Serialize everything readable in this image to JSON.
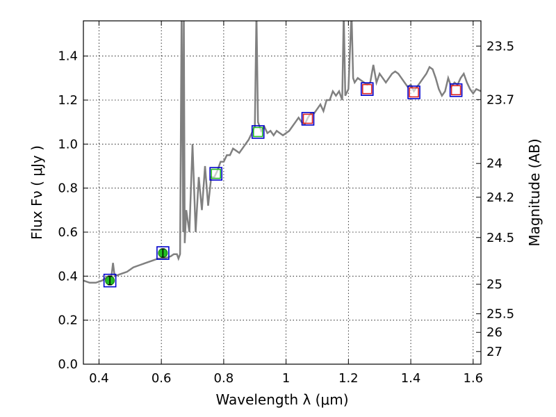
{
  "chart_data": {
    "type": "line",
    "xlabel": "Wavelength  λ (μm)",
    "ylabel": "Flux  Fν  ( μJy )",
    "y2label": "Magnitude (AB)",
    "xlim": [
      0.35,
      1.625
    ],
    "ylim": [
      0.0,
      1.56
    ],
    "grid": true,
    "x_ticks": [
      0.4,
      0.6,
      0.8,
      1.0,
      1.2,
      1.4,
      1.6
    ],
    "x_tick_labels": [
      "0.4",
      "0.6",
      "0.8",
      "1",
      "1.2",
      "1.4",
      "1.6"
    ],
    "y_ticks": [
      0.0,
      0.2,
      0.4,
      0.6,
      0.8,
      1.0,
      1.2,
      1.4
    ],
    "y_tick_labels": [
      "0.0",
      "0.2",
      "0.4",
      "0.6",
      "0.8",
      "1.0",
      "1.2",
      "1.4"
    ],
    "mag_ticks": [
      "23.5",
      "23.7",
      "24",
      "24.2",
      "24.5",
      "25",
      "25.5",
      "26",
      "27"
    ],
    "colors": {
      "spectrum": "#808080",
      "model_box": "#0000cc",
      "green_point": "#22bb22",
      "red_box": "#dd2222"
    },
    "series": [
      {
        "kind": "spectrum",
        "x": [
          0.35,
          0.37,
          0.39,
          0.41,
          0.43,
          0.44,
          0.445,
          0.45,
          0.47,
          0.49,
          0.51,
          0.53,
          0.55,
          0.57,
          0.59,
          0.61,
          0.63,
          0.64,
          0.65,
          0.655,
          0.66,
          0.665,
          0.67,
          0.672,
          0.675,
          0.68,
          0.69,
          0.7,
          0.71,
          0.72,
          0.73,
          0.74,
          0.75,
          0.76,
          0.77,
          0.78,
          0.79,
          0.8,
          0.81,
          0.82,
          0.83,
          0.84,
          0.85,
          0.86,
          0.87,
          0.88,
          0.89,
          0.9,
          0.905,
          0.91,
          0.92,
          0.93,
          0.94,
          0.95,
          0.96,
          0.97,
          0.98,
          0.99,
          1.0,
          1.01,
          1.02,
          1.03,
          1.04,
          1.05,
          1.06,
          1.07,
          1.08,
          1.09,
          1.1,
          1.11,
          1.12,
          1.13,
          1.14,
          1.15,
          1.16,
          1.17,
          1.18,
          1.185,
          1.19,
          1.2,
          1.21,
          1.215,
          1.22,
          1.23,
          1.24,
          1.25,
          1.26,
          1.27,
          1.28,
          1.29,
          1.3,
          1.31,
          1.32,
          1.33,
          1.34,
          1.35,
          1.36,
          1.37,
          1.38,
          1.39,
          1.4,
          1.41,
          1.42,
          1.43,
          1.44,
          1.45,
          1.46,
          1.47,
          1.48,
          1.49,
          1.5,
          1.51,
          1.52,
          1.53,
          1.54,
          1.55,
          1.56,
          1.57,
          1.58,
          1.59,
          1.6,
          1.61,
          1.625
        ],
        "y": [
          0.38,
          0.37,
          0.37,
          0.38,
          0.4,
          0.4,
          0.46,
          0.4,
          0.41,
          0.42,
          0.44,
          0.45,
          0.46,
          0.47,
          0.48,
          0.48,
          0.49,
          0.5,
          0.5,
          0.48,
          0.5,
          1.6,
          0.6,
          1.6,
          0.55,
          0.7,
          0.6,
          1.0,
          0.6,
          0.85,
          0.7,
          0.9,
          0.72,
          0.85,
          0.85,
          0.88,
          0.92,
          0.92,
          0.95,
          0.95,
          0.98,
          0.97,
          0.96,
          0.98,
          1.0,
          1.02,
          1.05,
          1.08,
          1.6,
          1.1,
          1.06,
          1.08,
          1.05,
          1.06,
          1.04,
          1.06,
          1.05,
          1.04,
          1.05,
          1.06,
          1.08,
          1.1,
          1.12,
          1.1,
          1.09,
          1.12,
          1.14,
          1.14,
          1.16,
          1.18,
          1.15,
          1.2,
          1.2,
          1.24,
          1.22,
          1.24,
          1.2,
          1.6,
          1.22,
          1.25,
          1.6,
          1.3,
          1.28,
          1.3,
          1.29,
          1.28,
          1.27,
          1.28,
          1.36,
          1.28,
          1.32,
          1.3,
          1.28,
          1.3,
          1.32,
          1.33,
          1.32,
          1.3,
          1.28,
          1.26,
          1.27,
          1.24,
          1.26,
          1.28,
          1.3,
          1.32,
          1.35,
          1.34,
          1.3,
          1.25,
          1.22,
          1.24,
          1.3,
          1.26,
          1.28,
          1.27,
          1.3,
          1.32,
          1.28,
          1.25,
          1.23,
          1.25,
          1.24
        ]
      },
      {
        "kind": "photometry",
        "points": [
          {
            "x": 0.435,
            "y": 0.38,
            "marker": "green_circle"
          },
          {
            "x": 0.605,
            "y": 0.505,
            "marker": "green_circle"
          },
          {
            "x": 0.775,
            "y": 0.865,
            "marker": "green_square"
          },
          {
            "x": 0.91,
            "y": 1.055,
            "marker": "green_square"
          },
          {
            "x": 1.07,
            "y": 1.115,
            "marker": "red_square"
          },
          {
            "x": 1.26,
            "y": 1.25,
            "marker": "red_square"
          },
          {
            "x": 1.41,
            "y": 1.235,
            "marker": "red_square"
          },
          {
            "x": 1.545,
            "y": 1.245,
            "marker": "red_square"
          }
        ]
      }
    ]
  }
}
